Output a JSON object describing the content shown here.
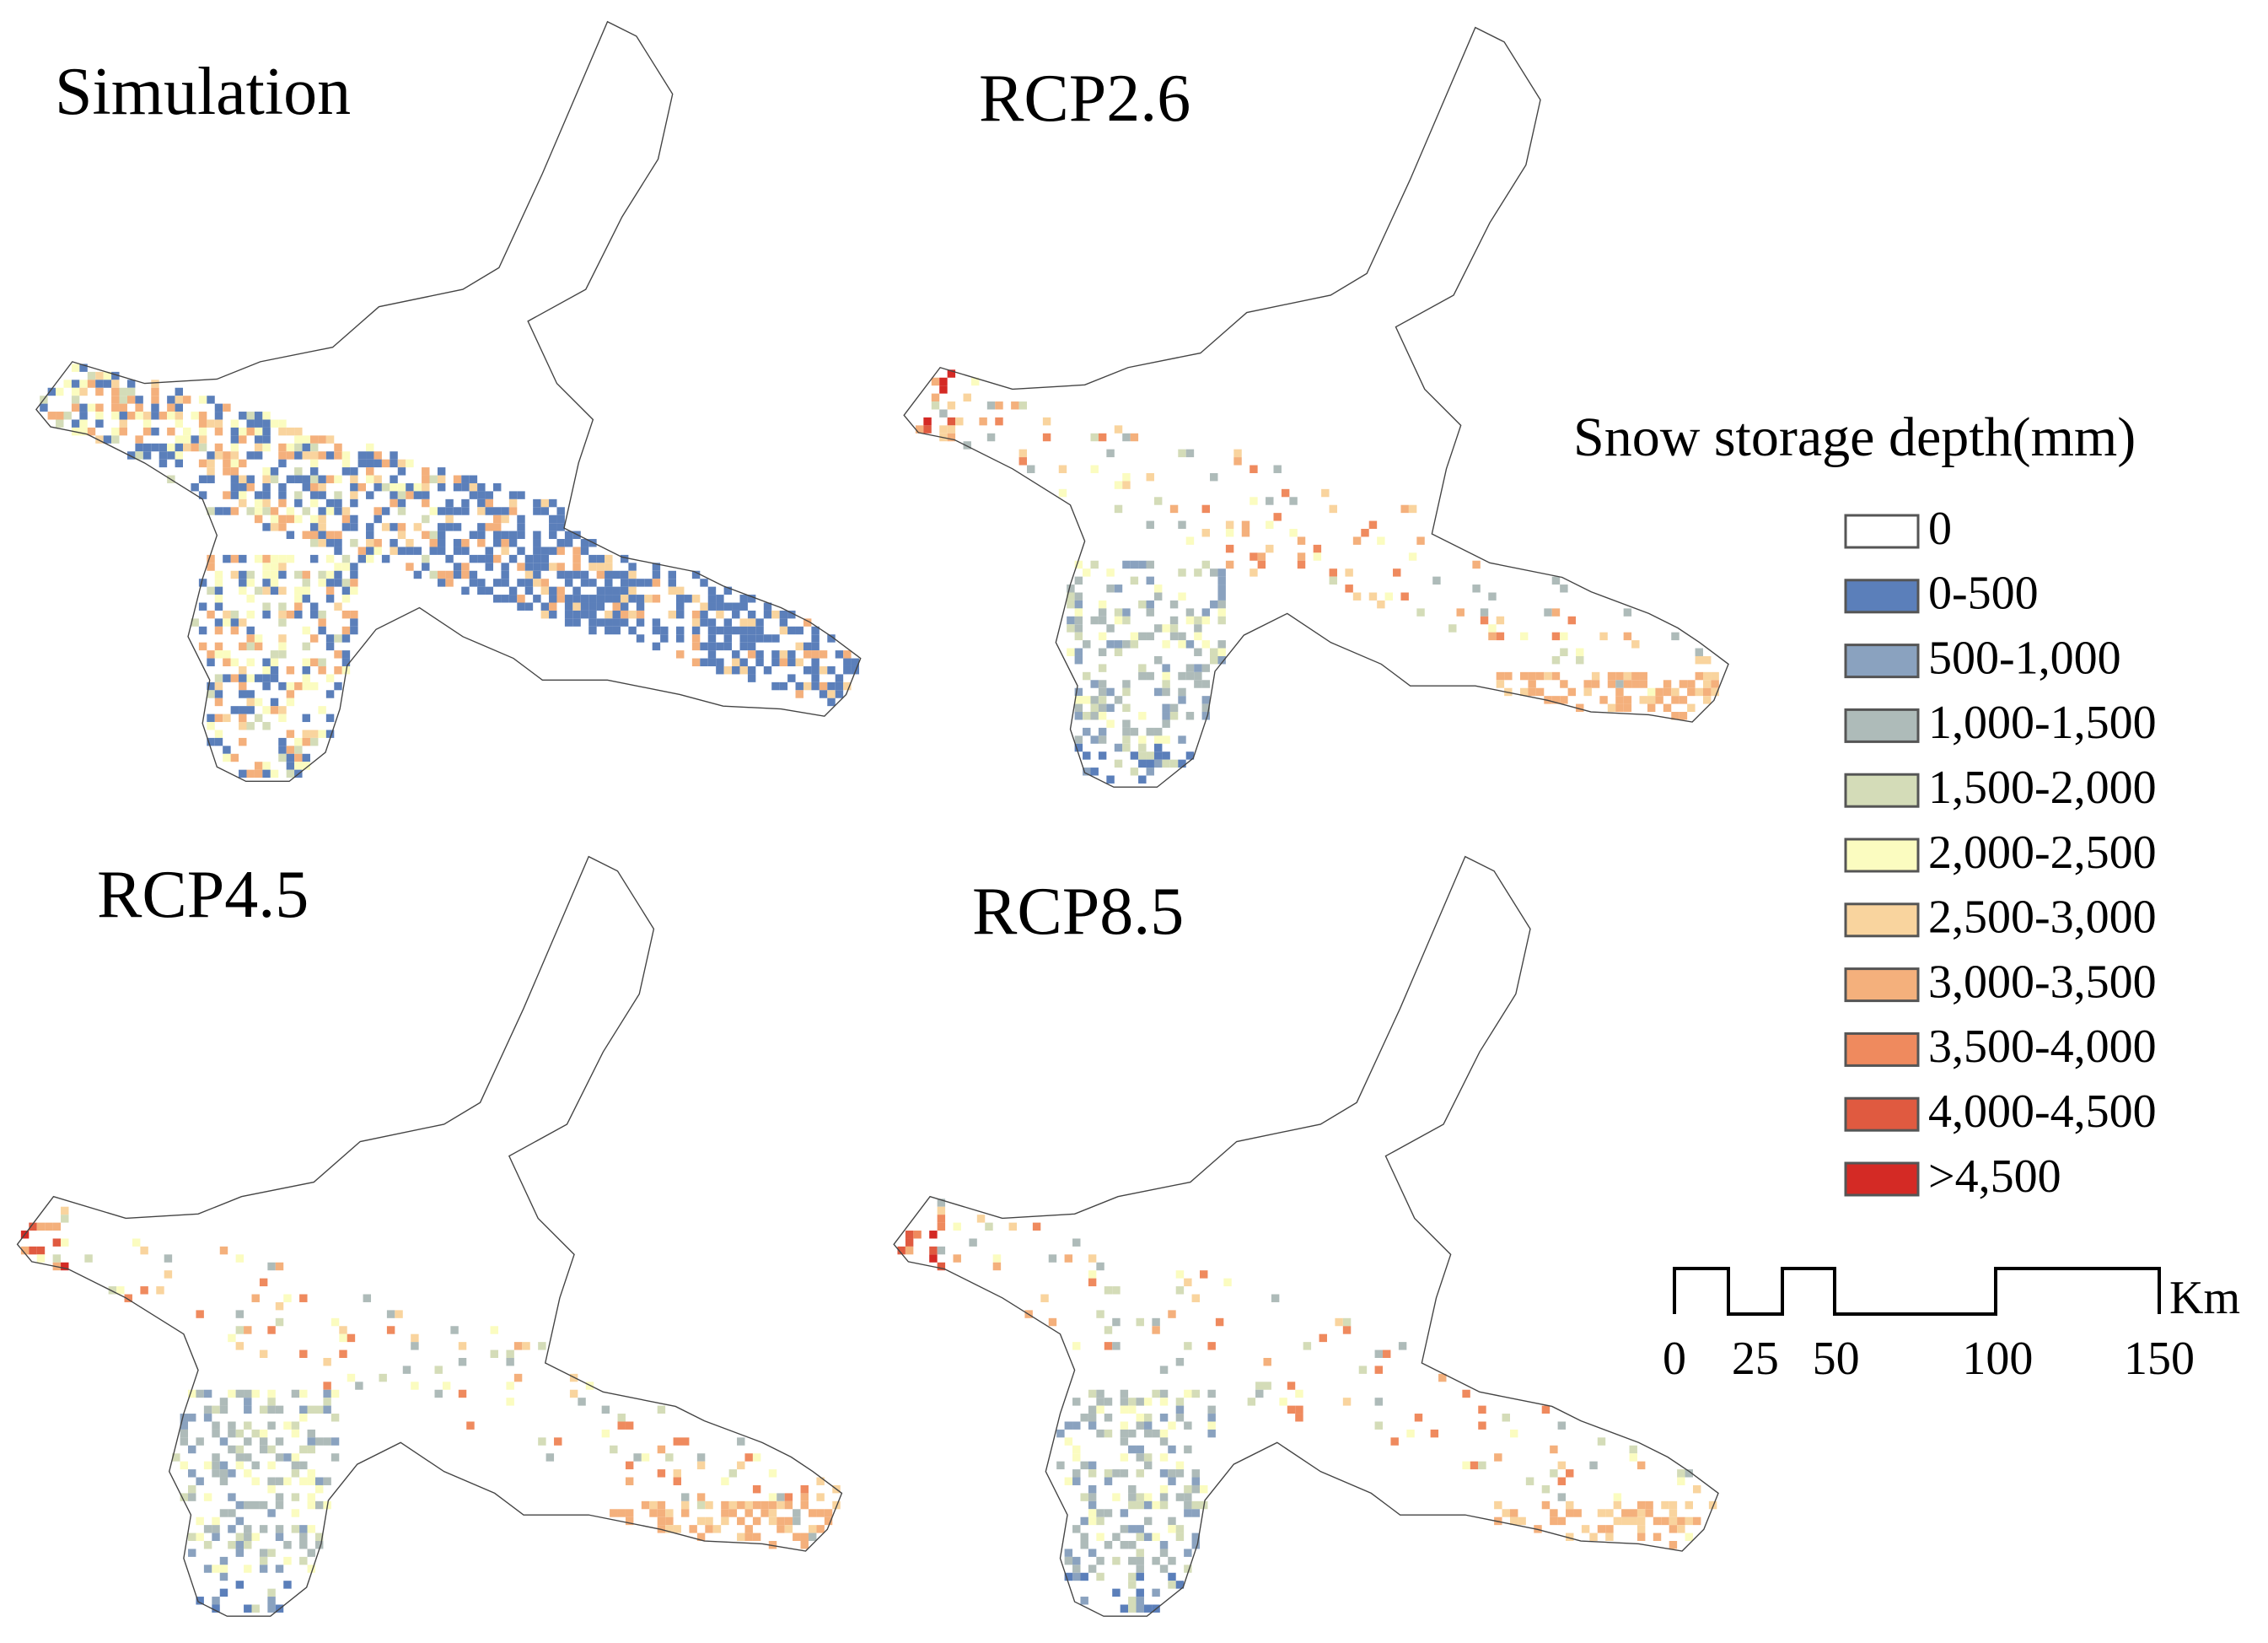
{
  "panels": [
    {
      "title": "Simulation"
    },
    {
      "title": "RCP2.6"
    },
    {
      "title": "RCP4.5"
    },
    {
      "title": "RCP8.5"
    }
  ],
  "legend": {
    "title": "Snow storage depth(mm)",
    "items": [
      {
        "label": "0",
        "color": "#ffffff"
      },
      {
        "label": "0-500",
        "color": "#5b7fba"
      },
      {
        "label": "500-1,000",
        "color": "#8aa2bf"
      },
      {
        "label": "1,000-1,500",
        "color": "#aebbb9"
      },
      {
        "label": "1,500-2,000",
        "color": "#d4dcb8"
      },
      {
        "label": "2,000-2,500",
        "color": "#fbfcc0"
      },
      {
        "label": "2,500-3,000",
        "color": "#f9d49e"
      },
      {
        "label": "3,000-3,500",
        "color": "#f4b07c"
      },
      {
        "label": "3,500-4,000",
        "color": "#ef8a5e"
      },
      {
        "label": "4,000-4,500",
        "color": "#e05a40"
      },
      {
        "label": ">4,500",
        "color": "#d42a25"
      }
    ]
  },
  "scale_bar": {
    "ticks": [
      0,
      25,
      50,
      100,
      150
    ],
    "unit": "Km"
  }
}
